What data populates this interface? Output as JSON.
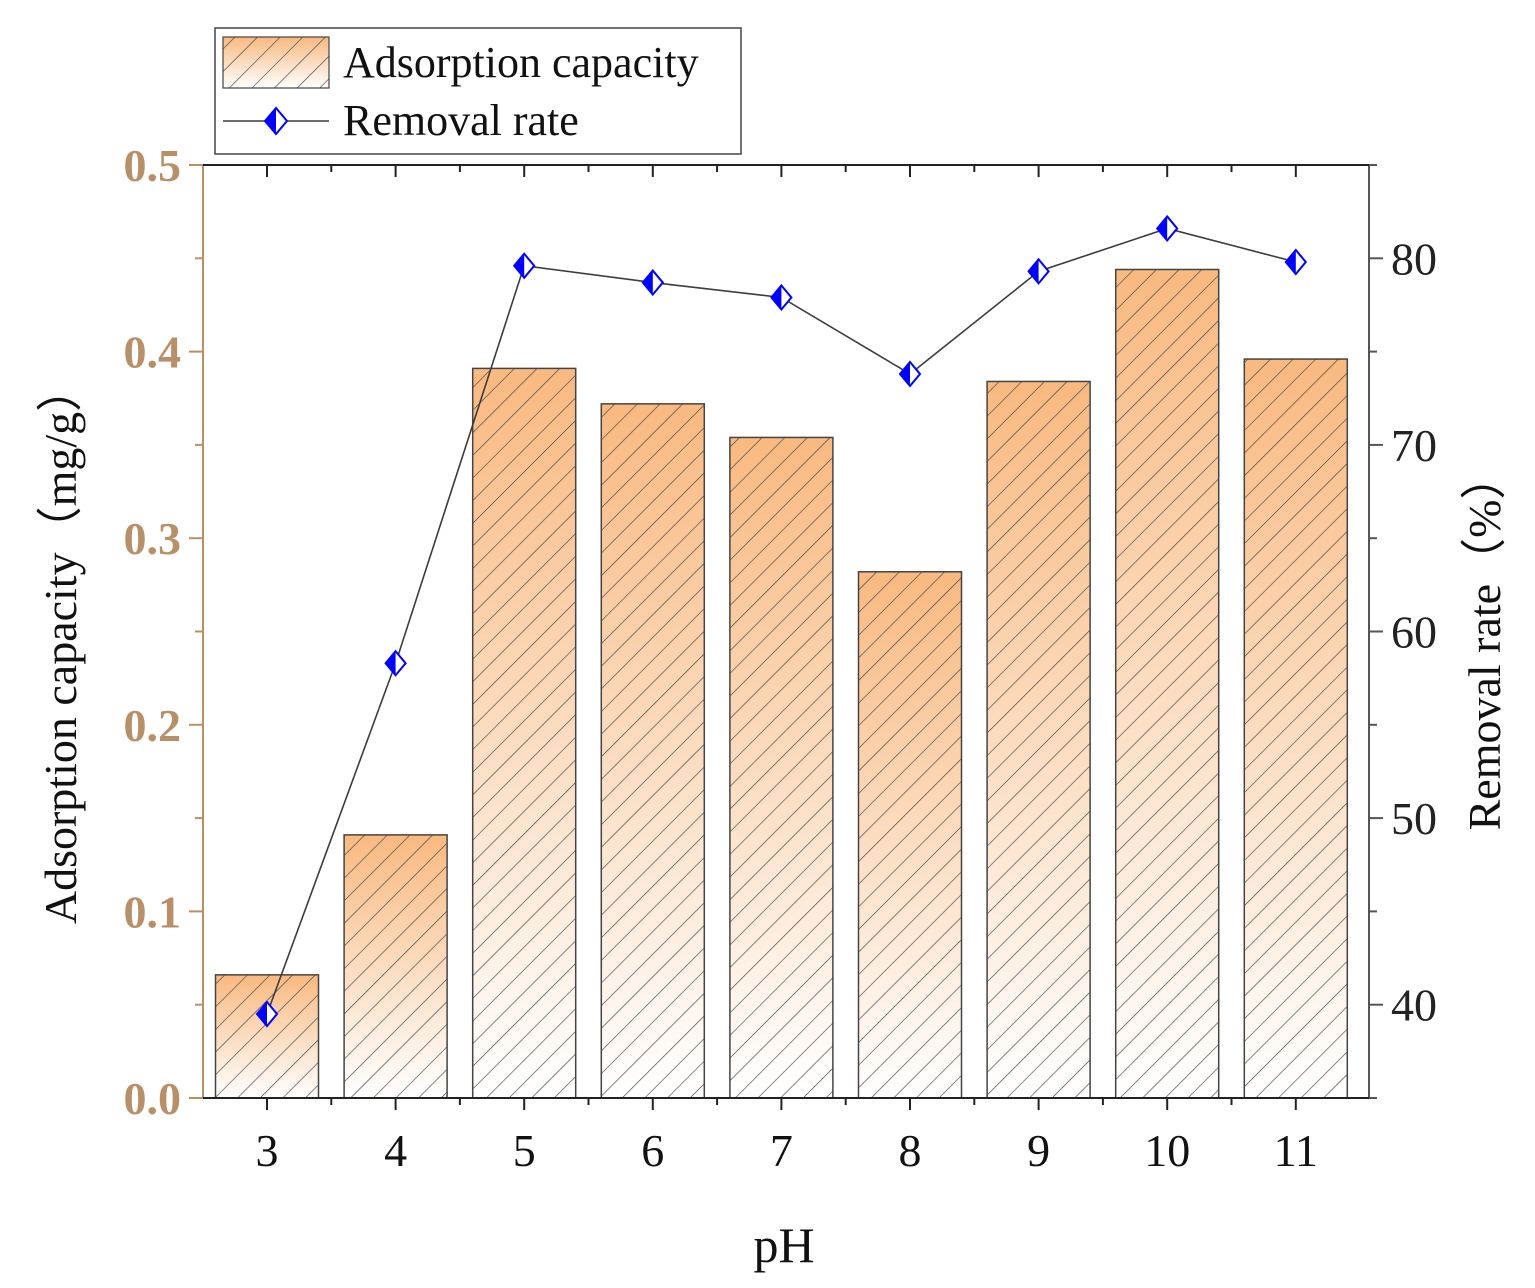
{
  "chart_data": {
    "type": "bar+line",
    "xlabel": "pH",
    "categories": [
      "3",
      "4",
      "5",
      "6",
      "7",
      "8",
      "9",
      "10",
      "11"
    ],
    "series": [
      {
        "name": "Adsorption capacity",
        "type": "bar",
        "axis": "left",
        "values": [
          0.066,
          0.141,
          0.391,
          0.372,
          0.354,
          0.282,
          0.384,
          0.444,
          0.396
        ]
      },
      {
        "name": "Removal rate",
        "type": "line",
        "axis": "right",
        "values": [
          39.5,
          58.3,
          79.6,
          78.7,
          77.9,
          73.8,
          79.3,
          81.6,
          79.8
        ]
      }
    ],
    "y_left": {
      "label": "Adsorption capacity（mg/g）",
      "lim": [
        0,
        0.5
      ],
      "ticks": [
        "0.0",
        "0.1",
        "0.2",
        "0.3",
        "0.4",
        "0.5"
      ]
    },
    "y_right": {
      "label": "Removal rate（%）",
      "lim": [
        35,
        85
      ],
      "ticks": [
        "40",
        "50",
        "60",
        "70",
        "80"
      ]
    },
    "legend": {
      "position": "top-left",
      "entries": [
        "Adsorption capacity",
        "Removal rate"
      ]
    },
    "colors": {
      "bar_top": "#f9b980",
      "bar_bottom": "#ffffff",
      "hatch": "#3a3a3a",
      "line": "#3c3c3c",
      "marker": "#0000ff",
      "left_axis": "#b89068",
      "right_axis": "#555555"
    }
  }
}
